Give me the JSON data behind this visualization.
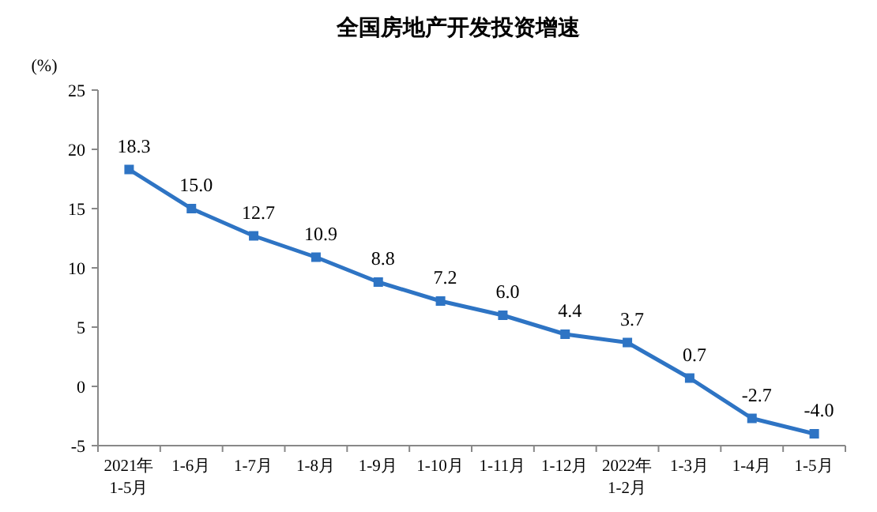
{
  "chart_data": {
    "type": "line",
    "title": "全国房地产开发投资增速",
    "ylabel": "(%)",
    "categories": [
      "2021年\n1-5月",
      "1-6月",
      "1-7月",
      "1-8月",
      "1-9月",
      "1-10月",
      "1-11月",
      "1-12月",
      "2022年\n1-2月",
      "1-3月",
      "1-4月",
      "1-5月"
    ],
    "series": [
      {
        "color": "#2e74c4",
        "values": [
          18.3,
          15.0,
          12.7,
          10.9,
          8.8,
          7.2,
          6.0,
          4.4,
          3.7,
          0.7,
          -2.7,
          -4.0
        ],
        "value_labels": [
          "18.3",
          "15.0",
          "12.7",
          "10.9",
          "8.8",
          "7.2",
          "6.0",
          "4.4",
          "3.7",
          "0.7",
          "-2.7",
          "-4.0"
        ]
      }
    ],
    "ylim": [
      -5,
      25
    ],
    "yticks": [
      -5,
      0,
      5,
      10,
      15,
      20,
      25
    ],
    "marker": "square",
    "line_style": "solid",
    "grid": false
  }
}
